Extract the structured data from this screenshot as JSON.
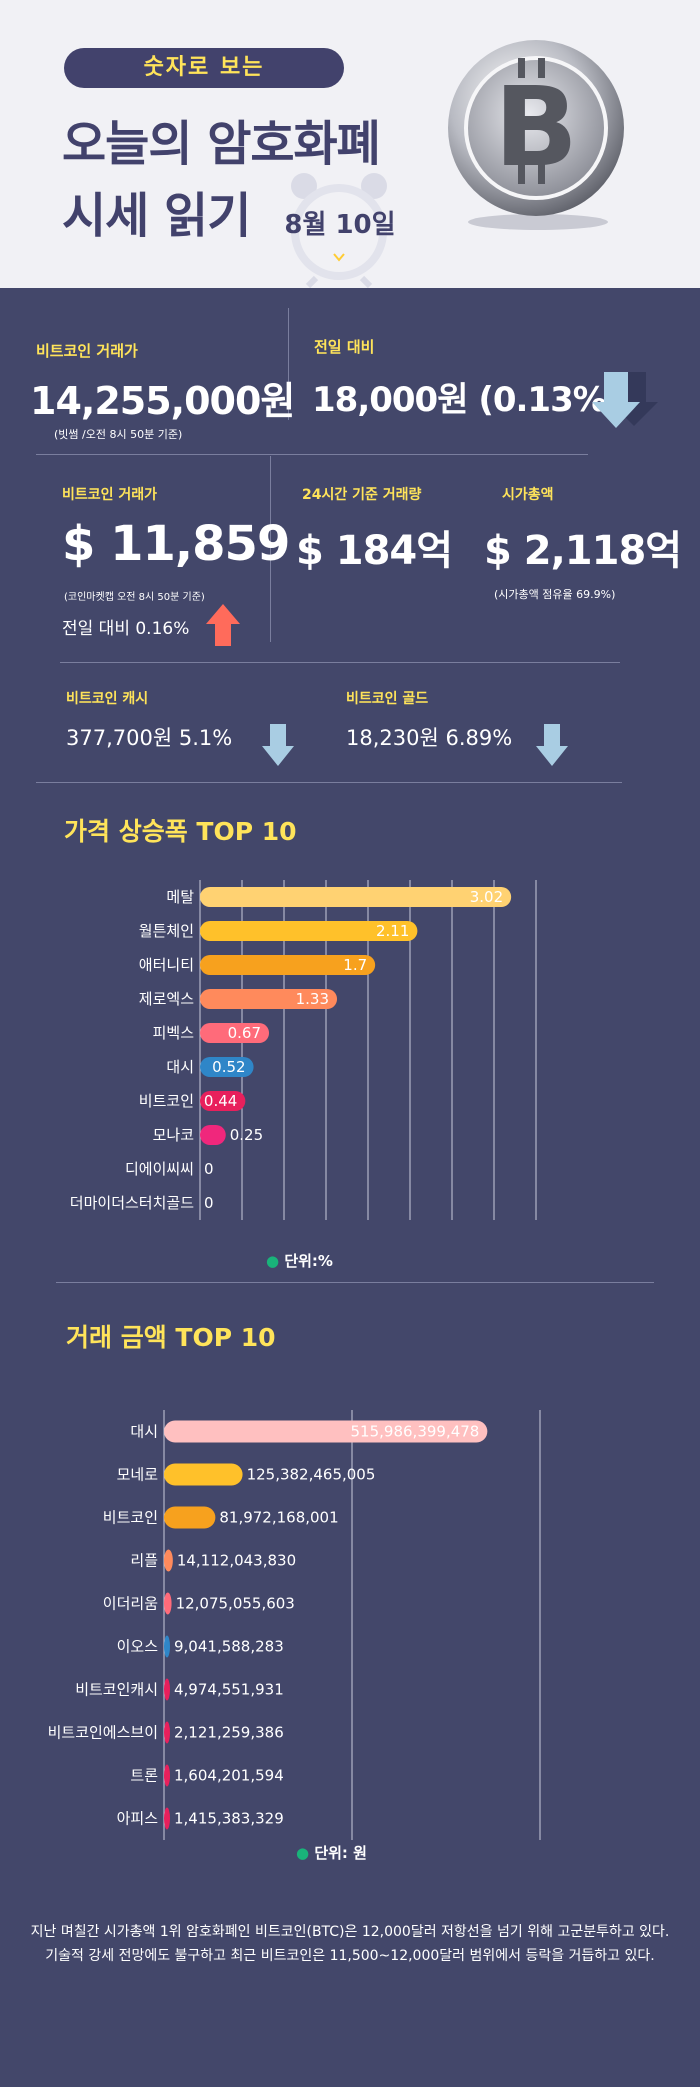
{
  "header": {
    "pill": "숫자로 보는",
    "title_line1": "오늘의 암호화폐",
    "title_line2": "시세 읽기",
    "date": "8월 10일"
  },
  "stats": {
    "krw_price_label": "비트코인 거래가",
    "krw_price": "14,255,000원",
    "krw_note": "(빗썸 /오전 8시 50분 기준)",
    "prev_day_label": "전일 대비",
    "prev_day_value": "18,000원 (0.13%)",
    "prev_day_direction": "down",
    "usd_price_label": "비트코인 거래가",
    "usd_price": "$ 11,859",
    "usd_note": "(코인마켓캡 오전 8시 50분 기준)",
    "usd_change": "전일 대비 0.16%",
    "usd_change_direction": "up",
    "volume_label": "24시간 기준 거래량",
    "volume": "$ 184억",
    "marketcap_label": "시가총액",
    "marketcap": "$ 2,118억",
    "marketcap_note": "(시가총액 점유율 69.9%)",
    "cash_label": "비트코인 캐시",
    "cash_value": "377,700원  5.1%",
    "cash_direction": "down",
    "gold_label": "비트코인 골드",
    "gold_value": "18,230원  6.89%",
    "gold_direction": "down"
  },
  "colors": {
    "background_dark": "#43476a",
    "accent_yellow": "#ffe45a",
    "arrow_down": "#a9cde3",
    "arrow_up": "#ff6b5b"
  },
  "chart1": {
    "title": "가격 상승폭 TOP 10",
    "unit": "단위:%"
  },
  "chart2": {
    "title": "거래 금액 TOP 10",
    "unit": "단위: 원"
  },
  "chart_data": [
    {
      "type": "bar",
      "orientation": "horizontal",
      "title": "가격 상승폭 TOP 10",
      "categories": [
        "메탈",
        "월튼체인",
        "애터니티",
        "제로엑스",
        "피벡스",
        "대시",
        "비트코인",
        "모나코",
        "디에이씨씨",
        "더마이더스터치골드"
      ],
      "values": [
        3.02,
        2.11,
        1.7,
        1.33,
        0.67,
        0.52,
        0.44,
        0.25,
        0,
        0
      ],
      "labels": [
        "3.02",
        "2.11",
        "1.7",
        "1.33",
        "0.67",
        "0.52",
        "0.44",
        "0.25",
        "0",
        "0"
      ],
      "colors": [
        "#ffd272",
        "#ffc12a",
        "#f7a11e",
        "#ff8a5c",
        "#ff6b7a",
        "#2f86c8",
        "#e8205c",
        "#f0277c",
        "#f0277c",
        "#f0277c"
      ],
      "xlim": [
        0,
        3.3
      ],
      "grid": true,
      "unit": "단위:%"
    },
    {
      "type": "bar",
      "orientation": "horizontal",
      "title": "거래 금액 TOP 10",
      "categories": [
        "대시",
        "모네로",
        "비트코인",
        "리플",
        "이더리움",
        "이오스",
        "비트코인캐시",
        "비트코인에스브이",
        "트론",
        "아피스"
      ],
      "values": [
        515986399478,
        125382465005,
        81972168001,
        14112043830,
        12075055603,
        9041588283,
        4974551931,
        2121259386,
        1604201594,
        1415383329
      ],
      "labels": [
        "515,986,399,478",
        "125,382,465,005",
        "81,972,168,001",
        "14,112,043,830",
        "12,075,055,603",
        "9,041,588,283",
        "4,974,551,931",
        "2,121,259,386",
        "1,604,201,594",
        "1,415,383,329"
      ],
      "colors": [
        "#ffc0c0",
        "#ffc12a",
        "#f7a11e",
        "#ff8a5c",
        "#ff6b7a",
        "#2f86c8",
        "#e8205c",
        "#e8205c",
        "#e8205c",
        "#e8205c"
      ],
      "xlim": [
        0,
        600000000000
      ],
      "grid": true,
      "unit": "단위: 원"
    }
  ],
  "summary": "지난 며칠간 시가총액 1위 암호화폐인 비트코인(BTC)은 12,000달러 저항선을 넘기 위해 고군분투하고 있다. 기술적 강세 전망에도 불구하고 최근 비트코인은 11,500~12,000달러 범위에서 등락을 거듭하고 있다."
}
